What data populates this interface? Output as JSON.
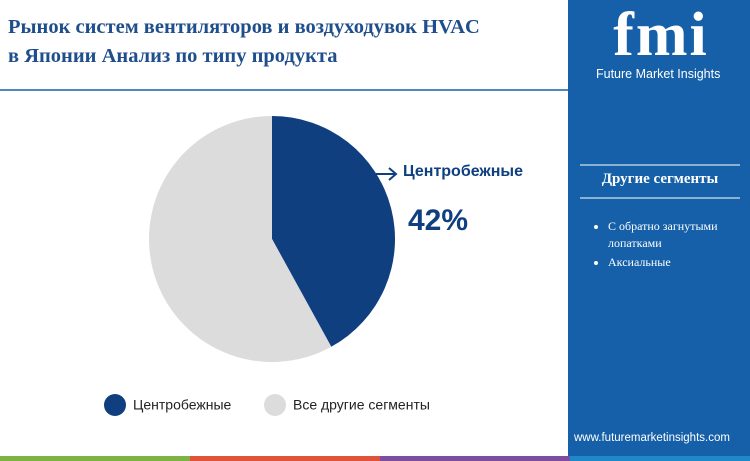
{
  "chart_data": {
    "type": "pie",
    "title": [
      "Рынок систем вентиляторов и воздуходувок HVAC",
      "в Японии Анализ по типу продукта"
    ],
    "categories": [
      "Центробежные",
      "Все другие сегменты"
    ],
    "values": [
      42,
      58
    ],
    "value_labels": [
      "42%",
      null
    ],
    "colors": [
      "#0f3f7f",
      "#dcdcdc"
    ]
  },
  "brand": {
    "logo": "fmi",
    "name": "Future Market Insights",
    "website": "www.futuremarketinsights.com"
  },
  "side_panel": {
    "heading": "Другие сегменты",
    "items": [
      "С обратно загнутыми лопатками",
      "Аксиальные"
    ]
  }
}
